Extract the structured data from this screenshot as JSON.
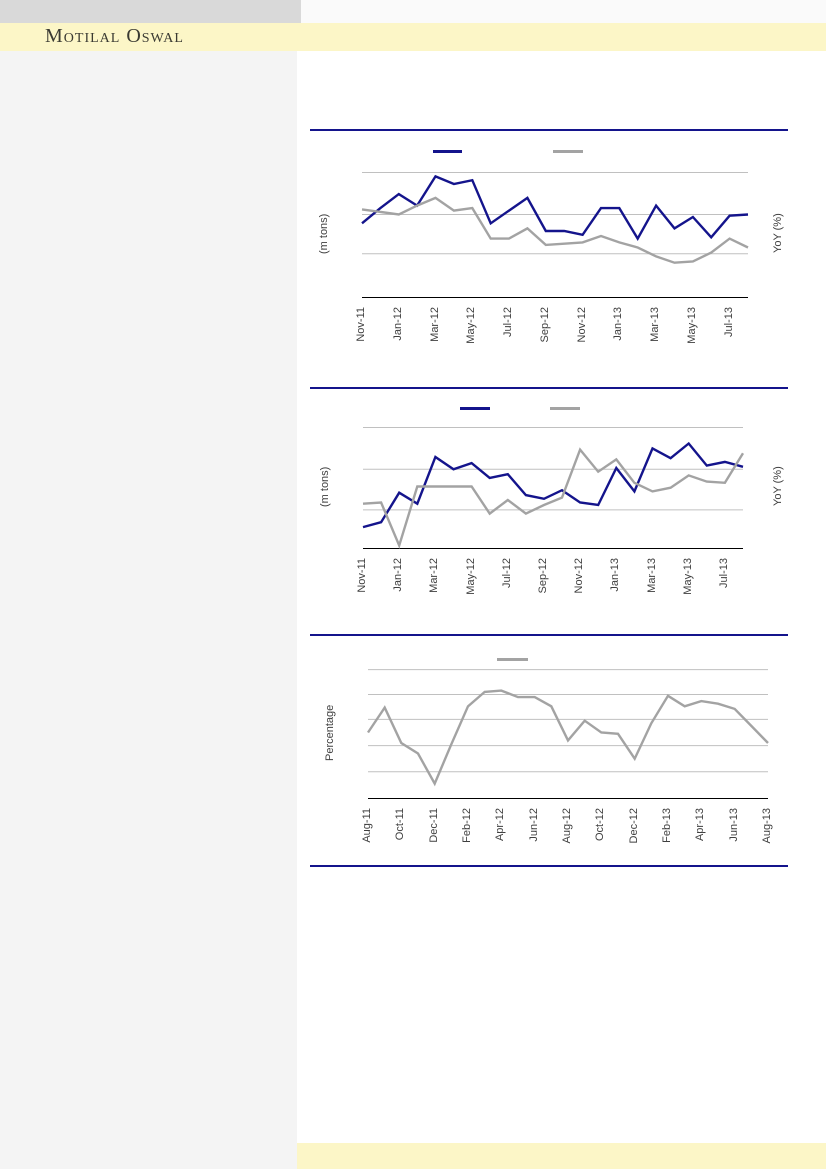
{
  "brand": {
    "name": "Motilal Oswal"
  },
  "theme": {
    "accent_navy": "#14148C",
    "series_gray": "#A3A3A3",
    "band_yellow": "#FCF6C7",
    "sidebar_gray": "#F4F4F4",
    "topbar_gray": "#D9D9D9",
    "gridline_gray": "#C0C0C0"
  },
  "chart_data": [
    {
      "id": "chart1",
      "type": "line",
      "title": "",
      "xlabel": "",
      "ylabel_left": "(m tons)",
      "ylabel_right": "YoY (%)",
      "ylim": [
        0,
        100
      ],
      "grid": true,
      "legend_position": "top",
      "legend": [
        {
          "label": "",
          "color": "#14148C"
        },
        {
          "label": "",
          "color": "#A3A3A3"
        }
      ],
      "gridline_values": [
        98,
        65,
        34
      ],
      "gridline_color": "#C0C0C0",
      "x_tick_labels": [
        "Nov-11",
        "Jan-12",
        "Mar-12",
        "May-12",
        "Jul-12",
        "Sep-12",
        "Nov-12",
        "Jan-13",
        "Mar-13",
        "May-13",
        "Jul-13"
      ],
      "categories": [
        "Nov-11",
        "Dec-11",
        "Jan-12",
        "Feb-12",
        "Mar-12",
        "Apr-12",
        "May-12",
        "Jun-12",
        "Jul-12",
        "Aug-12",
        "Sep-12",
        "Oct-12",
        "Nov-12",
        "Dec-12",
        "Jan-13",
        "Feb-13",
        "Mar-13",
        "Apr-13",
        "May-13",
        "Jun-13",
        "Jul-13",
        "Aug-13"
      ],
      "series": [
        {
          "name": "navy-line",
          "color": "#14148C",
          "values": [
            58,
            70,
            81,
            72,
            95,
            89,
            92,
            58,
            68,
            78,
            52,
            52,
            49,
            70,
            70,
            46,
            72,
            54,
            63,
            47,
            64,
            65
          ]
        },
        {
          "name": "gray-line",
          "color": "#A3A3A3",
          "values": [
            69,
            67,
            65,
            72,
            78,
            68,
            70,
            46,
            46,
            54,
            41,
            42,
            43,
            48,
            43,
            39,
            32,
            27,
            28,
            35,
            46,
            39
          ]
        }
      ]
    },
    {
      "id": "chart2",
      "type": "line",
      "title": "",
      "xlabel": "",
      "ylabel_left": "(m tons)",
      "ylabel_right": "YoY (%)",
      "ylim": [
        0,
        100
      ],
      "grid": true,
      "legend_position": "top",
      "legend": [
        {
          "label": "",
          "color": "#14148C"
        },
        {
          "label": "",
          "color": "#A3A3A3"
        }
      ],
      "gridline_values": [
        98,
        64,
        31
      ],
      "gridline_color": "#C0C0C0",
      "x_tick_labels": [
        "Nov-11",
        "Jan-12",
        "Mar-12",
        "May-12",
        "Jul-12",
        "Sep-12",
        "Nov-12",
        "Jan-13",
        "Mar-13",
        "May-13",
        "Jul-13"
      ],
      "categories": [
        "Nov-11",
        "Dec-11",
        "Jan-12",
        "Feb-12",
        "Mar-12",
        "Apr-12",
        "May-12",
        "Jun-12",
        "Jul-12",
        "Aug-12",
        "Sep-12",
        "Oct-12",
        "Nov-12",
        "Dec-12",
        "Jan-13",
        "Feb-13",
        "Mar-13",
        "Apr-13",
        "May-13",
        "Jun-13",
        "Jul-13",
        "Aug-13"
      ],
      "series": [
        {
          "name": "navy-line",
          "color": "#14148C",
          "values": [
            17,
            21,
            45,
            36,
            74,
            64,
            69,
            57,
            60,
            43,
            40,
            47,
            37,
            35,
            65,
            46,
            81,
            73,
            85,
            67,
            70,
            66
          ]
        },
        {
          "name": "gray-line",
          "color": "#A3A3A3",
          "values": [
            36,
            37,
            2,
            50,
            50,
            50,
            50,
            28,
            39,
            28,
            35,
            41,
            80,
            62,
            72,
            53,
            46,
            49,
            59,
            54,
            53,
            77
          ]
        }
      ]
    },
    {
      "id": "chart3",
      "type": "line",
      "title": "",
      "xlabel": "",
      "ylabel_left": "Percentage",
      "ylabel_right": "",
      "ylim": [
        0,
        100
      ],
      "grid": true,
      "legend_position": "top",
      "legend": [
        {
          "label": "",
          "color": "#A3A3A3"
        }
      ],
      "gridline_values": [
        98,
        79,
        60,
        40,
        20
      ],
      "gridline_color": "#C0C0C0",
      "x_tick_labels": [
        "Aug-11",
        "Oct-11",
        "Dec-11",
        "Feb-12",
        "Apr-12",
        "Jun-12",
        "Aug-12",
        "Oct-12",
        "Dec-12",
        "Feb-13",
        "Apr-13",
        "Jun-13",
        "Aug-13"
      ],
      "categories": [
        "Aug-11",
        "Sep-11",
        "Oct-11",
        "Nov-11",
        "Dec-11",
        "Jan-12",
        "Feb-12",
        "Mar-12",
        "Apr-12",
        "May-12",
        "Jun-12",
        "Jul-12",
        "Aug-12",
        "Sep-12",
        "Oct-12",
        "Nov-12",
        "Dec-12",
        "Jan-13",
        "Feb-13",
        "Mar-13",
        "Apr-13",
        "May-13",
        "Jun-13",
        "Jul-13",
        "Aug-13"
      ],
      "series": [
        {
          "name": "gray-line",
          "color": "#A3A3A3",
          "values": [
            50,
            69,
            42,
            34,
            11,
            41,
            70,
            81,
            82,
            77,
            77,
            70,
            44,
            59,
            50,
            49,
            30,
            57,
            78,
            70,
            74,
            72,
            68,
            55,
            42
          ]
        }
      ]
    }
  ]
}
